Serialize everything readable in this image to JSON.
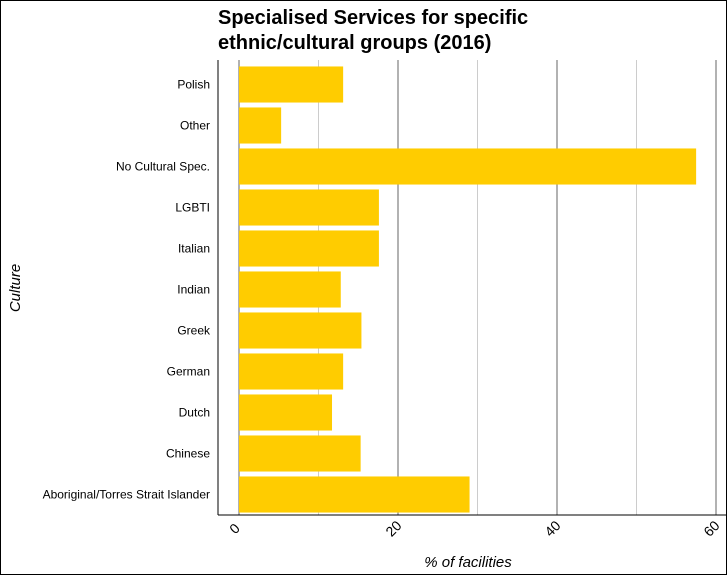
{
  "chart_data": {
    "type": "bar",
    "orientation": "horizontal",
    "title_lines": [
      "Specialised Services for specific",
      "ethnic/cultural groups (2016)"
    ],
    "xlabel": "% of facilities",
    "ylabel": "Culture",
    "categories": [
      "Polish",
      "Other",
      "No Cultural Spec.",
      "LGBTI",
      "Italian",
      "Indian",
      "Greek",
      "German",
      "Dutch",
      "Chinese",
      "Aboriginal/Torres Strait Islander"
    ],
    "values": [
      13.1,
      5.3,
      57.5,
      17.6,
      17.6,
      12.8,
      15.4,
      13.1,
      11.7,
      15.3,
      29.0
    ],
    "xlim": [
      0,
      60
    ],
    "xticks": [
      "0",
      "20",
      "40",
      "60"
    ],
    "bar_color": "#FFCC00",
    "grid": true
  }
}
